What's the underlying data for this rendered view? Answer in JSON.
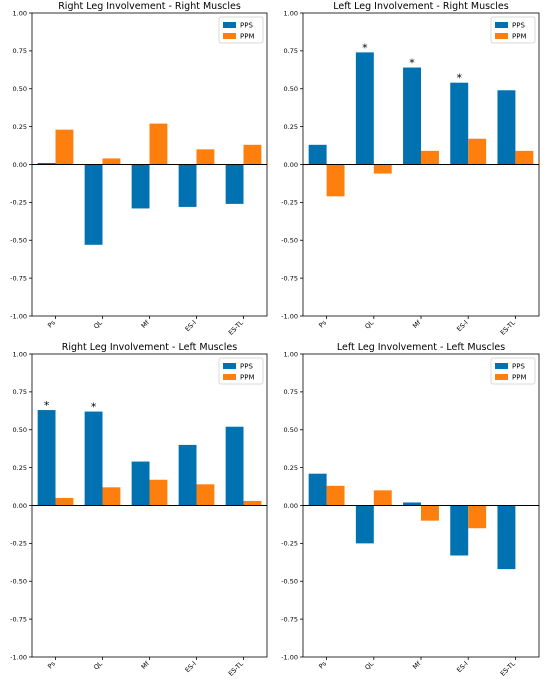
{
  "colors": {
    "pps": "#0072b2",
    "ppm": "#ff7f0e"
  },
  "chart_data": [
    {
      "type": "bar",
      "title": "Right Leg Involvement - Right Muscles",
      "categories": [
        "Ps",
        "QL",
        "Mf",
        "ES-l",
        "ES-TL"
      ],
      "series": [
        {
          "name": "PPS",
          "values": [
            0.01,
            -0.53,
            -0.29,
            -0.28,
            -0.26
          ]
        },
        {
          "name": "PPM",
          "values": [
            0.23,
            0.04,
            0.27,
            0.1,
            0.13
          ]
        }
      ],
      "significant": [],
      "ylim": [
        -1.0,
        1.0
      ],
      "yticks": [
        "1.00",
        "0.75",
        "0.50",
        "0.25",
        "0.00",
        "-0.25",
        "-0.50",
        "-0.75",
        "-1.00"
      ],
      "xlabel": "",
      "ylabel": "",
      "legend": "top-right",
      "grid": false
    },
    {
      "type": "bar",
      "title": "Left Leg Involvement - Right Muscles",
      "categories": [
        "Ps",
        "QL",
        "Mf",
        "ES-l",
        "ES-TL"
      ],
      "series": [
        {
          "name": "PPS",
          "values": [
            0.13,
            0.74,
            0.64,
            0.54,
            0.49
          ]
        },
        {
          "name": "PPM",
          "values": [
            -0.21,
            -0.06,
            0.09,
            0.17,
            0.09
          ]
        }
      ],
      "significant": [
        "*",
        "*",
        "*"
      ],
      "significant_categories": [
        "QL",
        "Mf",
        "ES-l"
      ],
      "ylim": [
        -1.0,
        1.0
      ],
      "yticks": [
        "1.00",
        "0.75",
        "0.50",
        "0.25",
        "0.00",
        "-0.25",
        "-0.50",
        "-0.75",
        "-1.00"
      ],
      "xlabel": "",
      "ylabel": "",
      "legend": "top-right",
      "grid": false
    },
    {
      "type": "bar",
      "title": "Right Leg Involvement - Left Muscles",
      "categories": [
        "Ps",
        "QL",
        "Mf",
        "ES-l",
        "ES-TL"
      ],
      "series": [
        {
          "name": "PPS",
          "values": [
            0.63,
            0.62,
            0.29,
            0.4,
            0.52
          ]
        },
        {
          "name": "PPM",
          "values": [
            0.05,
            0.12,
            0.17,
            0.14,
            0.03
          ]
        }
      ],
      "significant": [
        "*",
        "*"
      ],
      "significant_categories": [
        "Ps",
        "QL"
      ],
      "ylim": [
        -1.0,
        1.0
      ],
      "yticks": [
        "1.00",
        "0.75",
        "0.50",
        "0.25",
        "0.00",
        "-0.25",
        "-0.50",
        "-0.75",
        "-1.00"
      ],
      "xlabel": "",
      "ylabel": "",
      "legend": "top-right",
      "grid": false
    },
    {
      "type": "bar",
      "title": "Left Leg Involvement - Left Muscles",
      "categories": [
        "Ps",
        "QL",
        "Mf",
        "ES-l",
        "ES-TL"
      ],
      "series": [
        {
          "name": "PPS",
          "values": [
            0.21,
            -0.25,
            0.02,
            -0.33,
            -0.42
          ]
        },
        {
          "name": "PPM",
          "values": [
            0.13,
            0.1,
            -0.1,
            -0.15,
            0.0
          ]
        }
      ],
      "significant": [],
      "ylim": [
        -1.0,
        1.0
      ],
      "yticks": [
        "1.00",
        "0.75",
        "0.50",
        "0.25",
        "0.00",
        "-0.25",
        "-0.50",
        "-0.75",
        "-1.00"
      ],
      "xlabel": "",
      "ylabel": "",
      "legend": "top-right",
      "grid": false
    }
  ]
}
